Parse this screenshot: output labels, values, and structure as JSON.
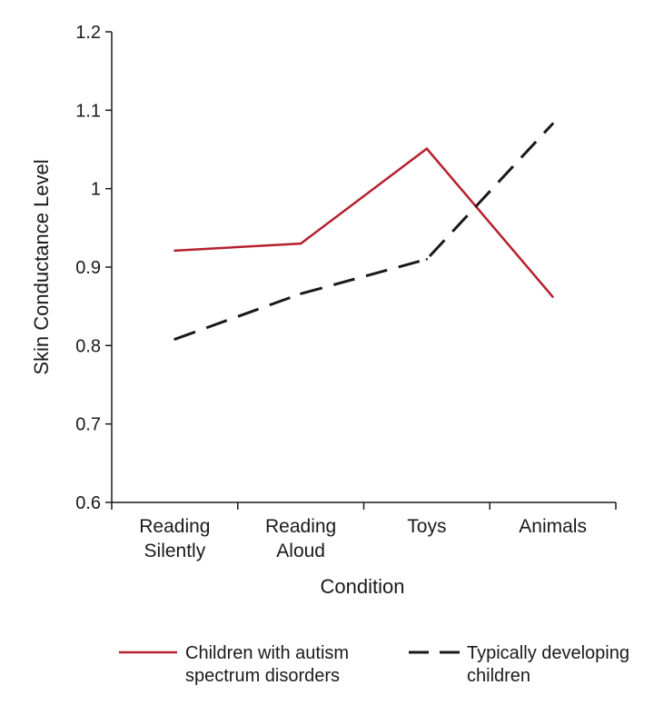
{
  "chart_data": {
    "type": "line",
    "title": "",
    "xlabel": "Condition",
    "ylabel": "Skin Conductance Level",
    "ylim": [
      0.6,
      1.2
    ],
    "yticks": [
      "0.6",
      "0.7",
      "0.8",
      "0.9",
      "1",
      "1.1",
      "1.2"
    ],
    "grid": false,
    "legend_position": "bottom",
    "categories": [
      [
        "Reading",
        "Silently"
      ],
      [
        "Reading",
        "Aloud"
      ],
      [
        "Toys"
      ],
      [
        "Animals"
      ]
    ],
    "series": [
      {
        "name": "Children with autism spectrum disorders",
        "legend_lines": [
          "Children with autism",
          "spectrum disorders"
        ],
        "values": [
          0.921,
          0.93,
          1.051,
          0.862
        ],
        "color": "#b5202e",
        "style": "solid"
      },
      {
        "name": "Typically developing children",
        "legend_lines": [
          "Typically developing",
          "children"
        ],
        "values": [
          0.808,
          0.866,
          0.91,
          1.083
        ],
        "color": "#1a1a1a",
        "style": "dashed"
      }
    ]
  }
}
